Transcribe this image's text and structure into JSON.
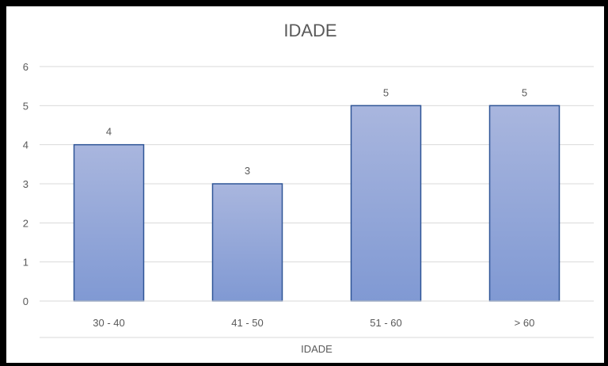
{
  "colors": {
    "bar_fill_top": "#a9b6de",
    "bar_fill_bottom": "#8099d3",
    "bar_stroke": "#2f5597",
    "grid": "#d9d9d9",
    "text": "#595959",
    "background": "#ffffff",
    "border": "#000000"
  },
  "chart_data": {
    "type": "bar",
    "title": "IDADE",
    "xlabel": "IDADE",
    "ylabel": "",
    "categories": [
      "30 - 40",
      "41 - 50",
      "51 - 60",
      "> 60"
    ],
    "values": [
      4,
      3,
      5,
      5
    ],
    "data_labels": [
      "4",
      "3",
      "5",
      "5"
    ],
    "ylim": [
      0,
      6
    ],
    "yticks": [
      "0",
      "1",
      "2",
      "3",
      "4",
      "5",
      "6"
    ],
    "grid": true,
    "legend": "none"
  }
}
